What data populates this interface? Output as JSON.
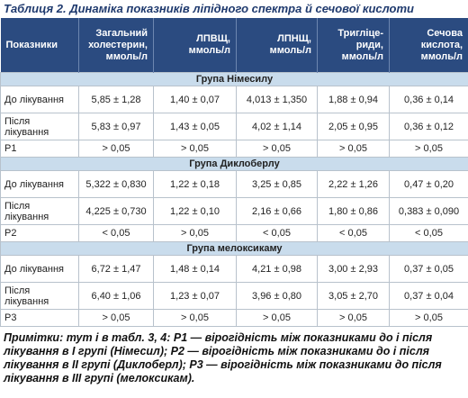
{
  "title": "Таблиця 2. Динаміка показників ліпідного спектра й сечової кислоти",
  "table": {
    "header": [
      "Показники",
      "Загальний холестерин, ммоль/л",
      "ЛПВЩ, ммоль/л",
      "ЛПНЩ, ммоль/л",
      "Тригліце-риди, ммоль/л",
      "Сечова кислота, ммоль/л"
    ],
    "groups": [
      {
        "title": "Група Німесилу",
        "rows": [
          [
            "До лікування",
            "5,85 ± 1,28",
            "1,40 ± 0,07",
            "4,013 ± 1,350",
            "1,88 ± 0,94",
            "0,36 ± 0,14"
          ],
          [
            "Після лікування",
            "5,83 ± 0,97",
            "1,43 ± 0,05",
            "4,02 ± 1,14",
            "2,05 ± 0,95",
            "0,36 ± 0,12"
          ],
          [
            "P1",
            "> 0,05",
            "> 0,05",
            "> 0,05",
            "> 0,05",
            "> 0,05"
          ]
        ]
      },
      {
        "title": "Група Диклоберлу",
        "rows": [
          [
            "До лікування",
            "5,322 ± 0,830",
            "1,22 ± 0,18",
            "3,25 ± 0,85",
            "2,22 ± 1,26",
            "0,47 ± 0,20"
          ],
          [
            "Після лікування",
            "4,225 ± 0,730",
            "1,22 ± 0,10",
            "2,16 ± 0,66",
            "1,80 ± 0,86",
            "0,383 ± 0,090"
          ],
          [
            "P2",
            "< 0,05",
            "> 0,05",
            "< 0,05",
            "< 0,05",
            "< 0,05"
          ]
        ]
      },
      {
        "title": "Група мелоксикаму",
        "rows": [
          [
            "До лікування",
            "6,72 ± 1,47",
            "1,48 ± 0,14",
            "4,21 ± 0,98",
            "3,00 ± 2,93",
            "0,37 ± 0,05"
          ],
          [
            "Після лікування",
            "6,40 ± 1,06",
            "1,23 ± 0,07",
            "3,96 ± 0,80",
            "3,05 ± 2,70",
            "0,37 ± 0,04"
          ],
          [
            "P3",
            "> 0,05",
            "> 0,05",
            "> 0,05",
            "> 0,05",
            "> 0,05"
          ]
        ]
      }
    ]
  },
  "notes": "Примітки: тут і в табл. 3, 4: P1 — вірогідність між показниками до і після лікування в І групі (Німесил); P2 — вірогідність між показниками до і після лікування в ІІ групі (Диклоберл); P3 — вірогідність між показниками до після лікування в ІІІ групі (мелоксикам)."
}
